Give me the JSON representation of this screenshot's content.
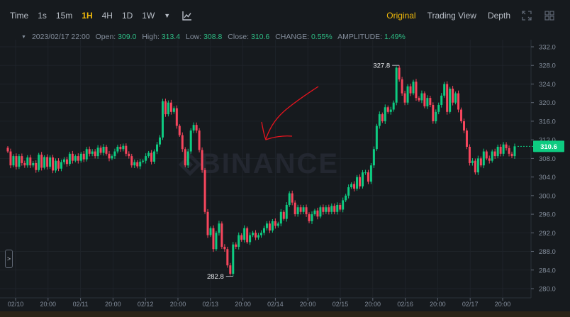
{
  "toolbar": {
    "timeframes": [
      "Time",
      "1s",
      "15m",
      "1H",
      "4H",
      "1D",
      "1W"
    ],
    "active_timeframe": "1H",
    "more_caret": "▼",
    "indicator_icon": "indicator-chart-icon",
    "view_tabs": [
      "Original",
      "Trading View",
      "Depth"
    ],
    "active_view": "Original",
    "fullscreen_icon": "fullscreen-icon",
    "grid_icon": "grid-layout-icon"
  },
  "info": {
    "datetime": "2023/02/17 22:00",
    "open_label": "Open:",
    "open": "309.0",
    "high_label": "High:",
    "high": "313.4",
    "low_label": "Low:",
    "low": "308.8",
    "close_label": "Close:",
    "close": "310.6",
    "change_label": "CHANGE:",
    "change": "0.55%",
    "amplitude_label": "AMPLITUDE:",
    "amplitude": "1.49%"
  },
  "expand_glyph": ">",
  "colors": {
    "up": "#0ecb81",
    "down": "#f6465d",
    "accent": "#f0b90b",
    "background": "#161a1e",
    "annotation": "#e8141e"
  },
  "chart_data": {
    "type": "candlestick",
    "interval": "1H",
    "watermark": "BINANCE",
    "ylim": [
      279.5,
      333.5
    ],
    "y_ticks": [
      "332.0",
      "328.0",
      "324.0",
      "320.0",
      "316.0",
      "312.0",
      "308.0",
      "304.0",
      "300.0",
      "296.0",
      "292.0",
      "288.0",
      "284.0",
      "280.0"
    ],
    "x_ticks": [
      "02/10",
      "20:00",
      "02/11",
      "20:00",
      "02/12",
      "20:00",
      "02/13",
      "20:00",
      "02/14",
      "20:00",
      "02/15",
      "20:00",
      "02/16",
      "20:00",
      "02/17",
      "20:00"
    ],
    "last_price": "310.6",
    "high_marker": "327.8",
    "low_marker": "282.8",
    "close_path": [
      309.5,
      306.5,
      308.5,
      306.2,
      308.5,
      307,
      306.5,
      308.2,
      306.5,
      307,
      305.5,
      308.8,
      306,
      308.3,
      306.2,
      308.2,
      305.4,
      307.5,
      305.8,
      307.2,
      307.8,
      306.8,
      309,
      307.5,
      308.5,
      307.5,
      309,
      307.8,
      310,
      309,
      309.5,
      308.5,
      310.3,
      309.2,
      310.5,
      309,
      308,
      308.5,
      309.5,
      310.5,
      310,
      310.7,
      309,
      308.5,
      306.5,
      307.2,
      306.3,
      307.3,
      307.5,
      308.5,
      309.2,
      307.3,
      309.5,
      311,
      312.5,
      320.3,
      317.5,
      320,
      318,
      318.8,
      315,
      313,
      310,
      306.5,
      309.5,
      314,
      315.2,
      314,
      309.8,
      305.5,
      296.5,
      291.5,
      293,
      288.5,
      292,
      294,
      289,
      288.5,
      285,
      283.2,
      289.5,
      289,
      291.5,
      290.5,
      293,
      290,
      291.5,
      292,
      291,
      291.5,
      292,
      293,
      294,
      292.5,
      294.5,
      293.5,
      294,
      296.5,
      295,
      298,
      300.5,
      298.5,
      296,
      297.5,
      296.5,
      297.5,
      296,
      294.5,
      296,
      296.8,
      295.5,
      297.5,
      296.5,
      297.5,
      296.5,
      297.8,
      296.5,
      298,
      297,
      299,
      300,
      301.8,
      302.5,
      301.5,
      304,
      302,
      305,
      305,
      303,
      306.5,
      310,
      315,
      317.5,
      316,
      319,
      318,
      318.5,
      320,
      327.5,
      325,
      322,
      320,
      323.5,
      322,
      324.5,
      321,
      320.5,
      322,
      319.2,
      321,
      319.5,
      316,
      318,
      319.5,
      321.5,
      324,
      318,
      323,
      320,
      322,
      318.5,
      316,
      314,
      310.5,
      307,
      307.5,
      305,
      308,
      306.5,
      309.5,
      308,
      307.5,
      309.5,
      308.5,
      310.5,
      309,
      311,
      310.2,
      309,
      308.5,
      310.6
    ]
  }
}
